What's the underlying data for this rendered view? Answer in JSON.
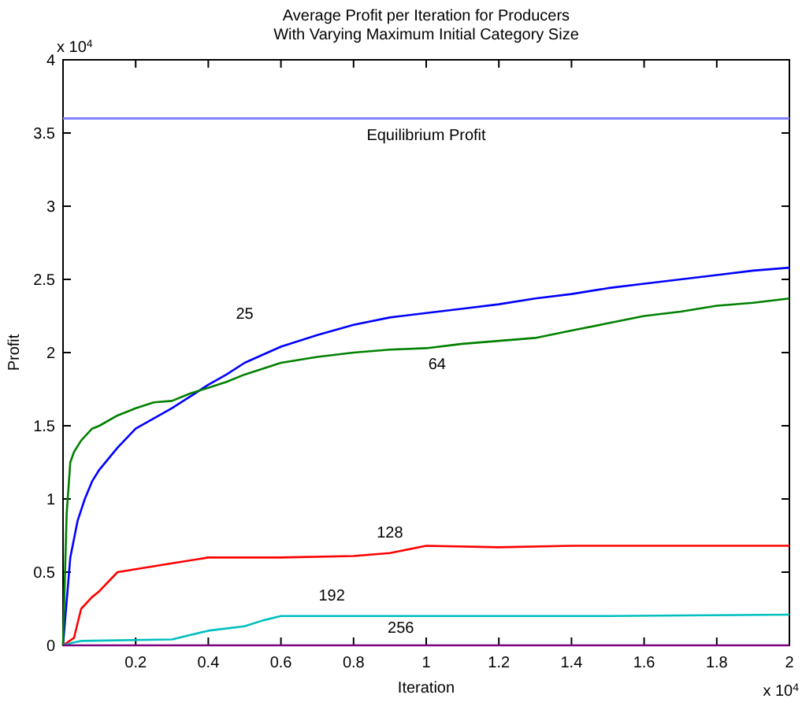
{
  "chart_data": {
    "type": "line",
    "title": "Average Profit per Iteration for Producers\nWith Varying Maximum Initial Category Size",
    "xlabel": "Iteration",
    "ylabel": "Profit",
    "xlim": [
      0,
      2
    ],
    "xticks": [
      0.2,
      0.4,
      0.6,
      0.8,
      1,
      1.2,
      1.4,
      1.6,
      1.8,
      2
    ],
    "ylim": [
      0,
      4
    ],
    "yticks": [
      0,
      0.5,
      1,
      1.5,
      2,
      2.5,
      3,
      3.5,
      4
    ],
    "grid": false,
    "marker": "none",
    "line_style": "solid",
    "ref_lines": [
      {
        "axis": "y",
        "value": 3.6,
        "label": "Equilibrium Profit",
        "color": "#8080ff"
      }
    ],
    "annotations": [
      "x 10$^{4}$",
      "x 10$^{4}$ "
    ],
    "series": [
      {
        "name": "25",
        "color": "#0000ff",
        "x": [
          0,
          0.01,
          0.02,
          0.04,
          0.06,
          0.08,
          0.1,
          0.15,
          0.2,
          0.25,
          0.3,
          0.35,
          0.4,
          0.45,
          0.5,
          0.6,
          0.7,
          0.8,
          0.9,
          1.0,
          1.1,
          1.2,
          1.3,
          1.4,
          1.5,
          1.6,
          1.7,
          1.8,
          1.9,
          2.0
        ],
        "values": [
          0,
          0.3,
          0.6,
          0.85,
          1.0,
          1.12,
          1.2,
          1.35,
          1.48,
          1.55,
          1.62,
          1.7,
          1.78,
          1.85,
          1.93,
          2.04,
          2.12,
          2.19,
          2.24,
          2.27,
          2.3,
          2.33,
          2.37,
          2.4,
          2.44,
          2.47,
          2.5,
          2.53,
          2.56,
          2.58
        ]
      },
      {
        "name": "64",
        "color": "#008000",
        "x": [
          0,
          0.01,
          0.02,
          0.03,
          0.05,
          0.08,
          0.1,
          0.15,
          0.2,
          0.25,
          0.3,
          0.35,
          0.4,
          0.45,
          0.5,
          0.6,
          0.7,
          0.8,
          0.9,
          1.0,
          1.1,
          1.2,
          1.3,
          1.4,
          1.5,
          1.6,
          1.7,
          1.8,
          1.9,
          2.0
        ],
        "values": [
          0,
          0.9,
          1.25,
          1.32,
          1.4,
          1.48,
          1.5,
          1.57,
          1.62,
          1.66,
          1.67,
          1.72,
          1.76,
          1.8,
          1.85,
          1.93,
          1.97,
          2.0,
          2.02,
          2.03,
          2.06,
          2.08,
          2.1,
          2.15,
          2.2,
          2.25,
          2.28,
          2.32,
          2.34,
          2.37
        ]
      },
      {
        "name": "128",
        "color": "#ff0000",
        "x": [
          0,
          0.03,
          0.05,
          0.08,
          0.1,
          0.15,
          0.2,
          0.3,
          0.4,
          0.5,
          0.6,
          0.8,
          0.9,
          1.0,
          1.2,
          1.4,
          1.6,
          1.8,
          2.0
        ],
        "values": [
          0,
          0.05,
          0.25,
          0.33,
          0.37,
          0.5,
          0.52,
          0.56,
          0.6,
          0.6,
          0.6,
          0.61,
          0.63,
          0.68,
          0.67,
          0.68,
          0.68,
          0.68,
          0.68
        ]
      },
      {
        "name": "192",
        "color": "#00bfbf",
        "x": [
          0,
          0.03,
          0.05,
          0.3,
          0.4,
          0.5,
          0.55,
          0.6,
          0.8,
          1.0,
          1.5,
          2.0
        ],
        "values": [
          0,
          0.02,
          0.03,
          0.04,
          0.1,
          0.13,
          0.17,
          0.2,
          0.2,
          0.2,
          0.2,
          0.21
        ]
      },
      {
        "name": "256",
        "color": "#7f007f",
        "x": [
          0,
          0.5,
          1.0,
          1.5,
          2.0
        ],
        "values": [
          0,
          0,
          0,
          0,
          0
        ]
      }
    ]
  }
}
